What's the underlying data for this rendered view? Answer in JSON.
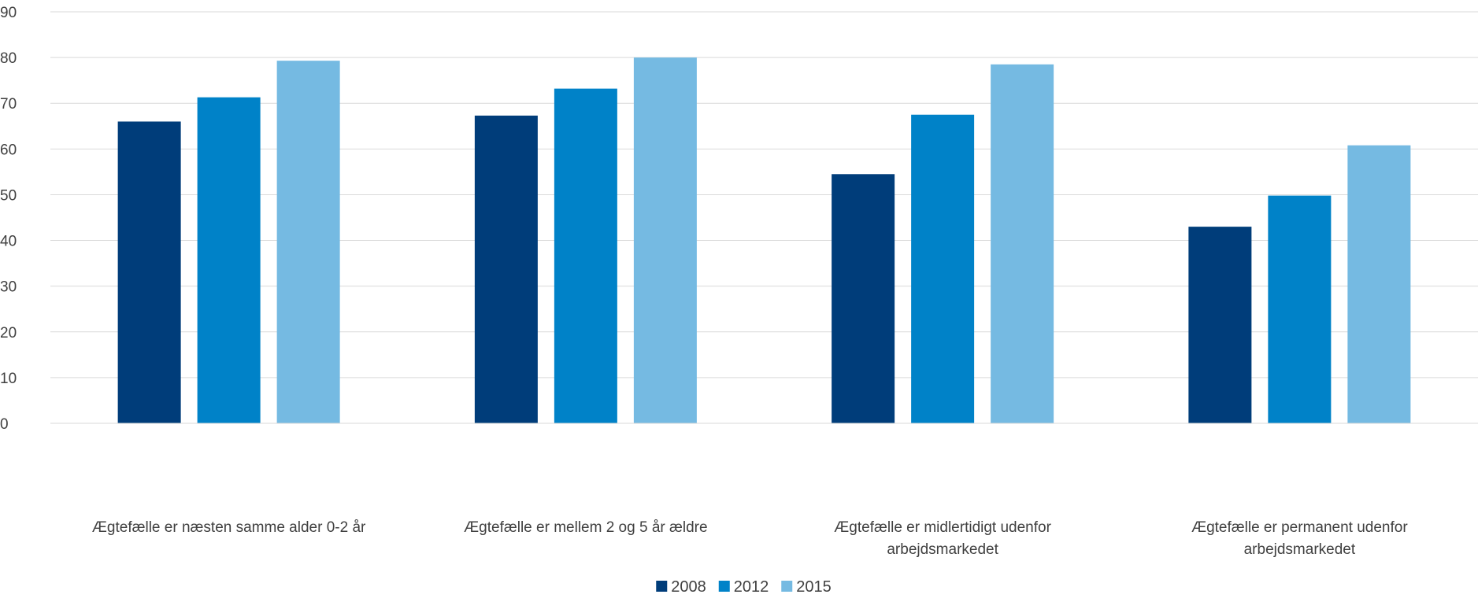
{
  "chart_data": {
    "type": "bar",
    "title": "",
    "xlabel": "",
    "ylabel": "",
    "ylim": [
      0,
      90
    ],
    "yticks": [
      0,
      10,
      20,
      30,
      40,
      50,
      60,
      70,
      80,
      90
    ],
    "grid": true,
    "legend_position": "bottom",
    "categories": [
      [
        "Ægtefælle er næsten samme alder 0-2 år"
      ],
      [
        "Ægtefælle er mellem 2 og 5 år ældre"
      ],
      [
        "Ægtefælle er midlertidigt udenfor",
        "arbejdsmarkedet"
      ],
      [
        "Ægtefælle er permanent udenfor",
        "arbejdsmarkedet"
      ]
    ],
    "series": [
      {
        "name": "2008",
        "color": "#003d7a",
        "values": [
          66,
          67.3,
          54.5,
          43
        ]
      },
      {
        "name": "2012",
        "color": "#0082c8",
        "values": [
          71.3,
          73.2,
          67.5,
          49.8
        ]
      },
      {
        "name": "2015",
        "color": "#75bae2",
        "values": [
          79.3,
          80,
          78.5,
          60.8
        ]
      }
    ]
  }
}
